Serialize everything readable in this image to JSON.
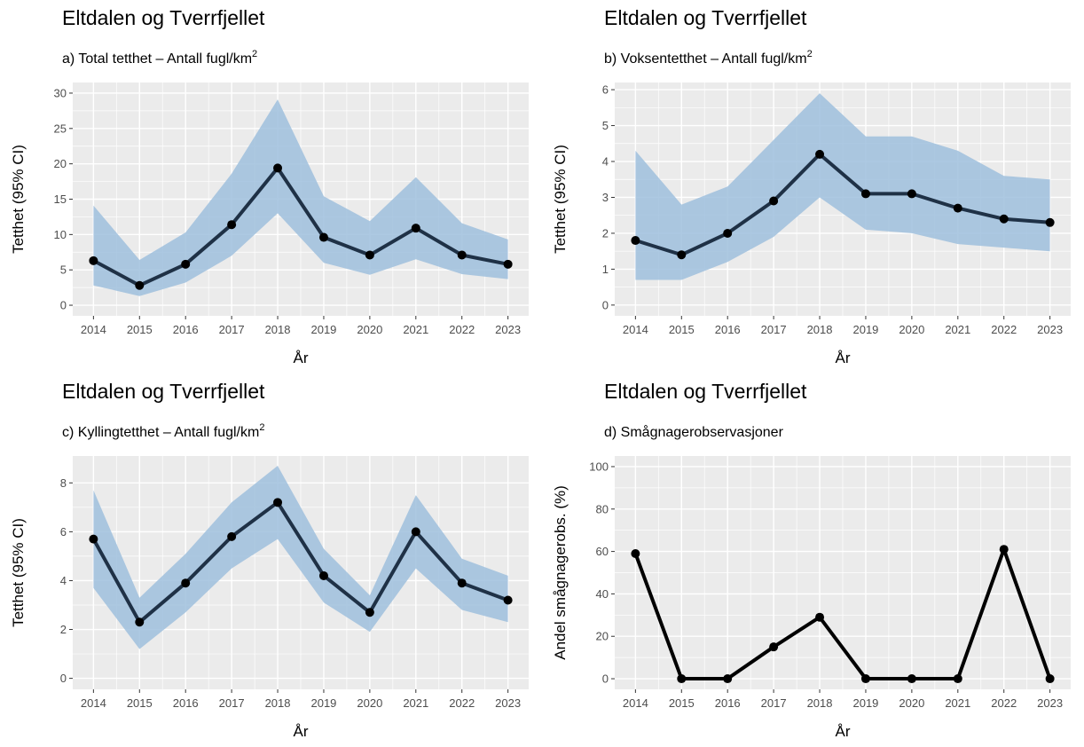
{
  "chart_data": [
    {
      "type": "line",
      "title": "Eltdalen og Tverrfjellet",
      "subtitle": "a) Total tetthet – Antall fugl/km",
      "subtitle_sup": "2",
      "xlabel": "År",
      "ylabel": "Tetthet (95% CI)",
      "x": [
        2014,
        2015,
        2016,
        2017,
        2018,
        2019,
        2020,
        2021,
        2022,
        2023
      ],
      "ylim": [
        -1.5,
        31.5
      ],
      "yticks": [
        0,
        5,
        10,
        15,
        20,
        25,
        30
      ],
      "series": [
        {
          "values": [
            6.3,
            2.8,
            5.8,
            11.4,
            19.4,
            9.6,
            7.1,
            10.9,
            7.1,
            5.8
          ],
          "lower": [
            2.8,
            1.3,
            3.2,
            7.0,
            13.0,
            6.0,
            4.3,
            6.5,
            4.4,
            3.7
          ],
          "upper": [
            14.1,
            6.4,
            10.3,
            18.6,
            29.1,
            15.4,
            11.9,
            18.1,
            11.6,
            9.3
          ]
        }
      ],
      "colors": {
        "line": "#1f3146",
        "ribbon": "#9fbfdd"
      },
      "grid": true,
      "legend": "none"
    },
    {
      "type": "line",
      "title": "Eltdalen og Tverrfjellet",
      "subtitle": "b) Voksentetthet – Antall fugl/km",
      "subtitle_sup": "2",
      "xlabel": "År",
      "ylabel": "Tetthet (95% CI)",
      "x": [
        2014,
        2015,
        2016,
        2017,
        2018,
        2019,
        2020,
        2021,
        2022,
        2023
      ],
      "ylim": [
        -0.3,
        6.2
      ],
      "yticks": [
        0,
        1,
        2,
        3,
        4,
        5,
        6
      ],
      "series": [
        {
          "values": [
            1.8,
            1.4,
            2.0,
            2.9,
            4.2,
            3.1,
            3.1,
            2.7,
            2.4,
            2.3
          ],
          "lower": [
            0.7,
            0.7,
            1.2,
            1.9,
            3.0,
            2.1,
            2.0,
            1.7,
            1.6,
            1.5
          ],
          "upper": [
            4.3,
            2.8,
            3.3,
            4.6,
            5.9,
            4.7,
            4.7,
            4.3,
            3.6,
            3.5
          ]
        }
      ],
      "colors": {
        "line": "#1f3146",
        "ribbon": "#9fbfdd"
      },
      "grid": true,
      "legend": "none"
    },
    {
      "type": "line",
      "title": "Eltdalen og Tverrfjellet",
      "subtitle": "c) Kyllingtetthet – Antall fugl/km",
      "subtitle_sup": "2",
      "xlabel": "År",
      "ylabel": "Tetthet (95% CI)",
      "x": [
        2014,
        2015,
        2016,
        2017,
        2018,
        2019,
        2020,
        2021,
        2022,
        2023
      ],
      "ylim": [
        -0.45,
        9.1
      ],
      "yticks": [
        0,
        2,
        4,
        6,
        8
      ],
      "series": [
        {
          "values": [
            5.7,
            2.3,
            3.9,
            5.8,
            7.2,
            4.2,
            2.7,
            6.0,
            3.9,
            3.2
          ],
          "lower": [
            3.7,
            1.2,
            2.7,
            4.5,
            5.7,
            3.1,
            1.9,
            4.5,
            2.8,
            2.3
          ],
          "upper": [
            7.7,
            3.3,
            5.1,
            7.2,
            8.7,
            5.3,
            3.4,
            7.5,
            4.9,
            4.2
          ]
        }
      ],
      "colors": {
        "line": "#1f3146",
        "ribbon": "#9fbfdd"
      },
      "grid": true,
      "legend": "none"
    },
    {
      "type": "line",
      "title": "Eltdalen og Tverrfjellet",
      "subtitle": "d) Smågnagerobservasjoner",
      "subtitle_sup": "",
      "xlabel": "År",
      "ylabel": "Andel smågnagerobs. (%)",
      "x": [
        2014,
        2015,
        2016,
        2017,
        2018,
        2019,
        2020,
        2021,
        2022,
        2023
      ],
      "ylim": [
        -5,
        105
      ],
      "yticks": [
        0,
        20,
        40,
        60,
        80,
        100
      ],
      "series": [
        {
          "values": [
            59,
            0,
            0,
            15,
            29,
            0,
            0,
            0,
            61,
            0
          ]
        }
      ],
      "colors": {
        "line": "#000000",
        "ribbon": "none"
      },
      "grid": true,
      "legend": "none"
    }
  ]
}
